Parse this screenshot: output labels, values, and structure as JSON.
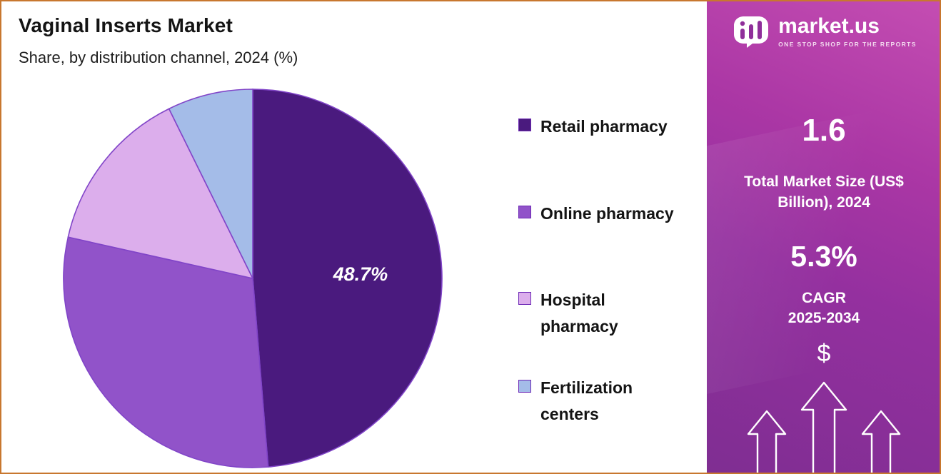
{
  "header": {
    "title": "Vaginal Inserts Market",
    "subtitle": "Share, by distribution channel, 2024 (%)"
  },
  "chart_data": {
    "type": "pie",
    "title": "Vaginal Inserts Market",
    "subtitle": "Share, by distribution channel, 2024 (%)",
    "unit": "%",
    "labels": [
      "Retail pharmacy",
      "Online pharmacy",
      "Hospital pharmacy",
      "Fertilization centers"
    ],
    "legend_labels": [
      "Retail pharmacy",
      "Online pharmacy",
      "Hospital\npharmacy",
      "Fertilization\ncenters"
    ],
    "values": [
      48.7,
      29.8,
      14.2,
      7.3
    ],
    "colors": [
      "#4a1a7e",
      "#9153c9",
      "#dcaeec",
      "#a4bce8"
    ],
    "stroke_color": "#8145c8",
    "start_angle_deg": 0,
    "direction": "clockwise",
    "data_labels": [
      {
        "index": 0,
        "text": "48.7%"
      }
    ],
    "legend_position": "right"
  },
  "sidebar": {
    "brand": {
      "name": "market.us",
      "tagline": "ONE STOP SHOP FOR THE REPORTS"
    },
    "market_size": {
      "value": "1.6",
      "label": "Total Market Size (US$ Billion), 2024"
    },
    "cagr": {
      "value": "5.3%",
      "label": "CAGR",
      "period": "2025-2034"
    },
    "dollar_symbol": "$"
  }
}
